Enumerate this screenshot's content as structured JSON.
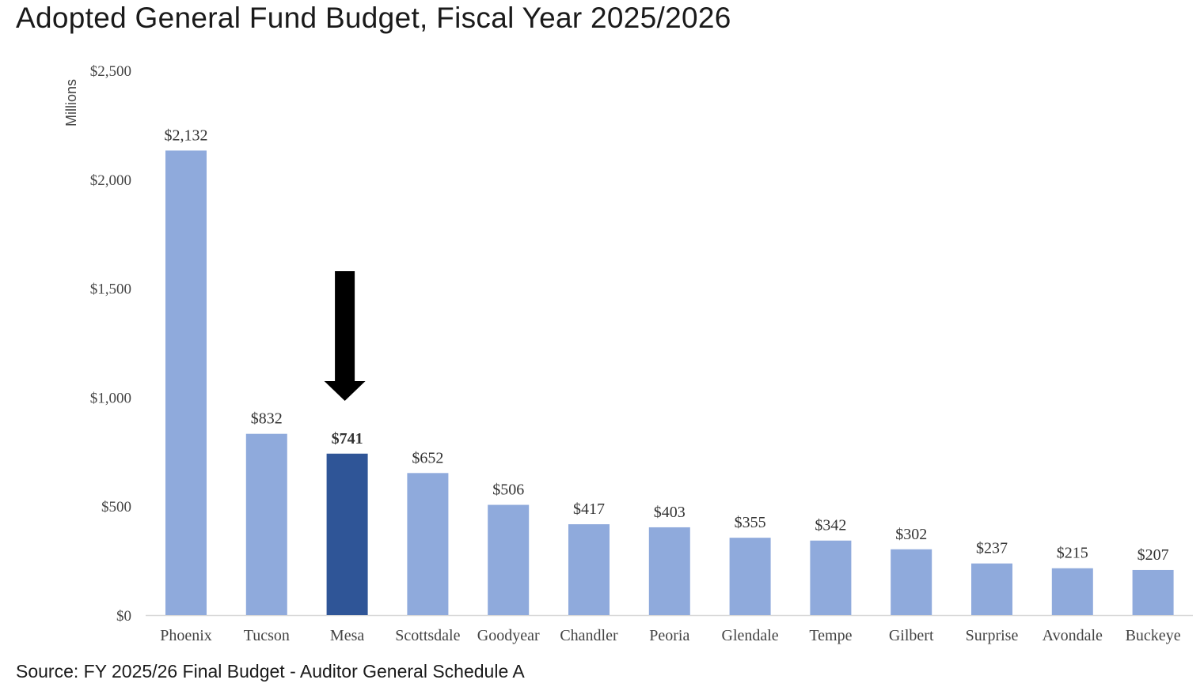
{
  "title": "Adopted General Fund Budget, Fiscal Year 2025/2026",
  "source": "Source: FY 2025/26 Final Budget - Auditor General Schedule A",
  "chart_data": {
    "type": "bar",
    "title": "Adopted General Fund Budget, Fiscal Year 2025/2026",
    "ylabel": "Millions",
    "xlabel": "",
    "ylim": [
      0,
      2500
    ],
    "yticks": [
      0,
      500,
      1000,
      1500,
      2000,
      2500
    ],
    "ytick_labels": [
      "$0",
      "$500",
      "$1,000",
      "$1,500",
      "$2,000",
      "$2,500"
    ],
    "grid": false,
    "categories": [
      "Phoenix",
      "Tucson",
      "Mesa",
      "Scottsdale",
      "Goodyear",
      "Chandler",
      "Peoria",
      "Glendale",
      "Tempe",
      "Gilbert",
      "Surprise",
      "Avondale",
      "Buckeye"
    ],
    "values": [
      2132,
      832,
      741,
      652,
      506,
      417,
      403,
      355,
      342,
      302,
      237,
      215,
      207
    ],
    "data_labels": [
      "$2,132",
      "$832",
      "$741",
      "$652",
      "$506",
      "$417",
      "$403",
      "$355",
      "$342",
      "$302",
      "$237",
      "$215",
      "$207"
    ],
    "highlight": "Mesa",
    "annotation": "arrow pointing down at Mesa",
    "colors": {
      "bar": "#8faadc",
      "highlight": "#2f5597",
      "arrow": "#000000",
      "axis": "#d9d9d9"
    }
  }
}
